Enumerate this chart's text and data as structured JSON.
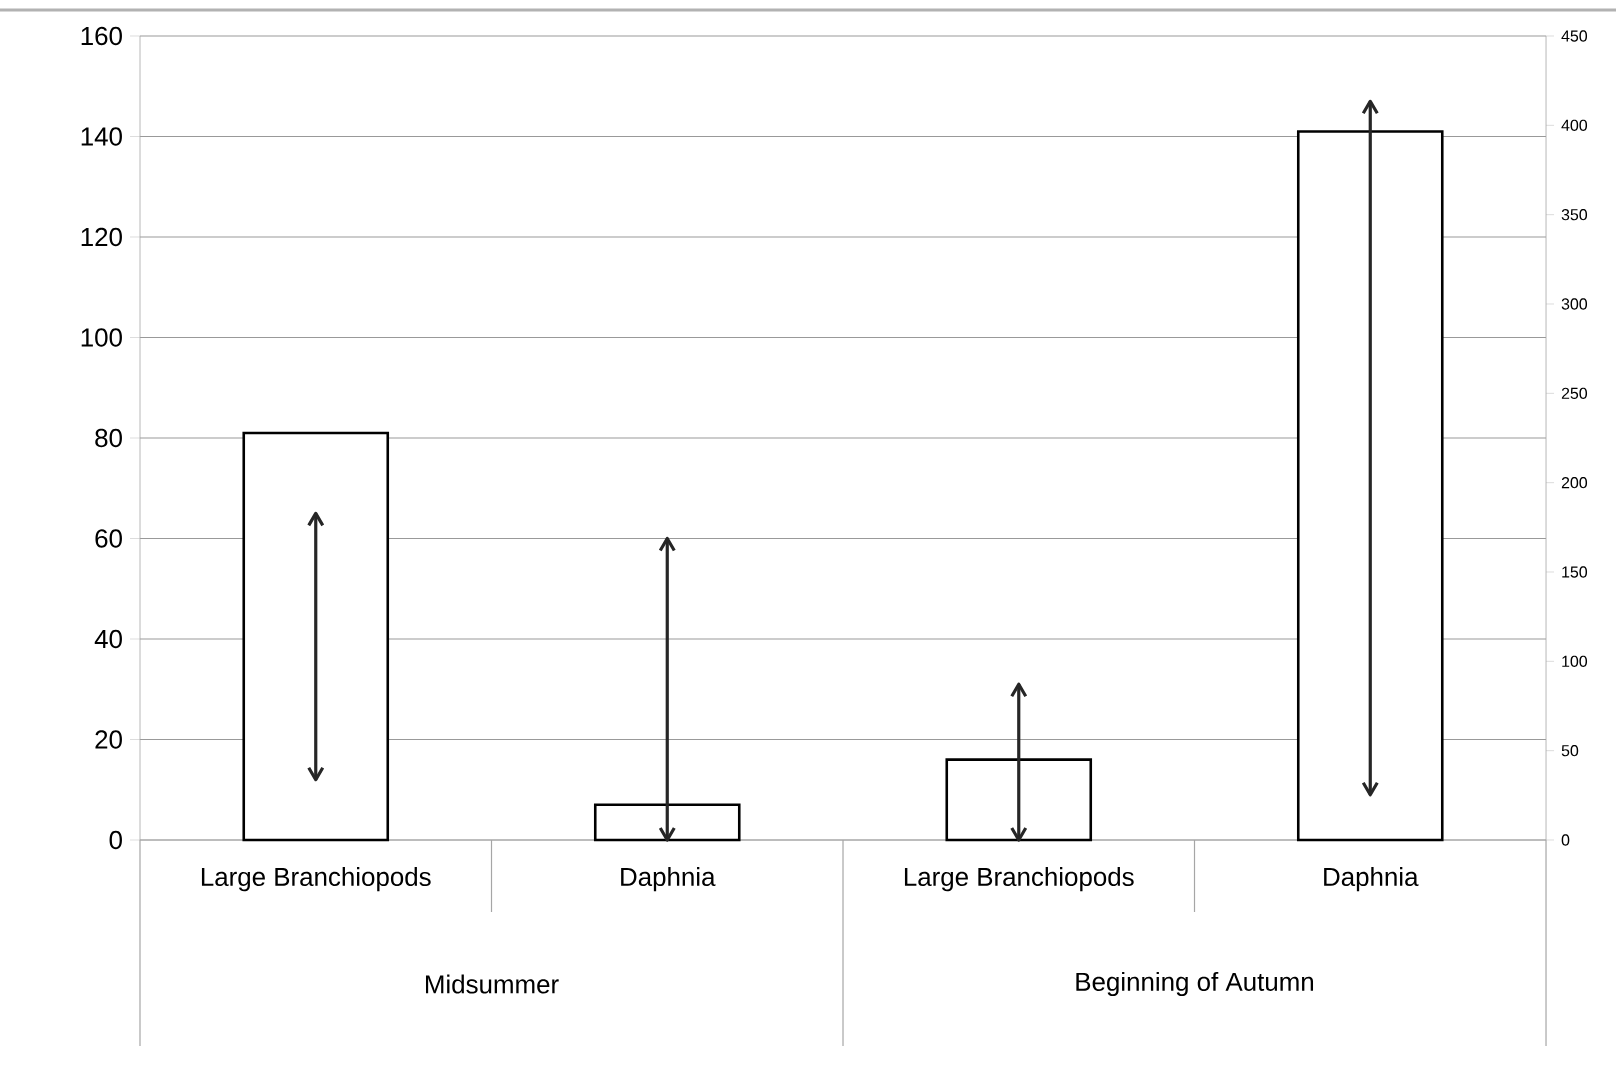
{
  "chart_data": {
    "type": "bar",
    "categories": [
      "Large Branchiopods",
      "Daphnia",
      "Large Branchiopods",
      "Daphnia"
    ],
    "annotations": [
      "Midsummer",
      "Beginning of Autumn"
    ],
    "series": [
      {
        "color": "#ffffff",
        "values": [
          81,
          7,
          16,
          141
        ],
        "errors": [
          [
            12,
            65
          ],
          [
            0,
            60
          ],
          [
            0,
            31
          ],
          [
            9,
            147
          ]
        ]
      }
    ],
    "ylim": [
      0,
      160
    ],
    "yticks": [
      0,
      20,
      40,
      60,
      80,
      100,
      120,
      140,
      160
    ],
    "y2lim": [
      0,
      450
    ],
    "y2ticks": [
      0,
      50,
      100,
      150,
      200,
      250,
      300,
      350,
      400,
      450
    ],
    "grid": "y"
  }
}
